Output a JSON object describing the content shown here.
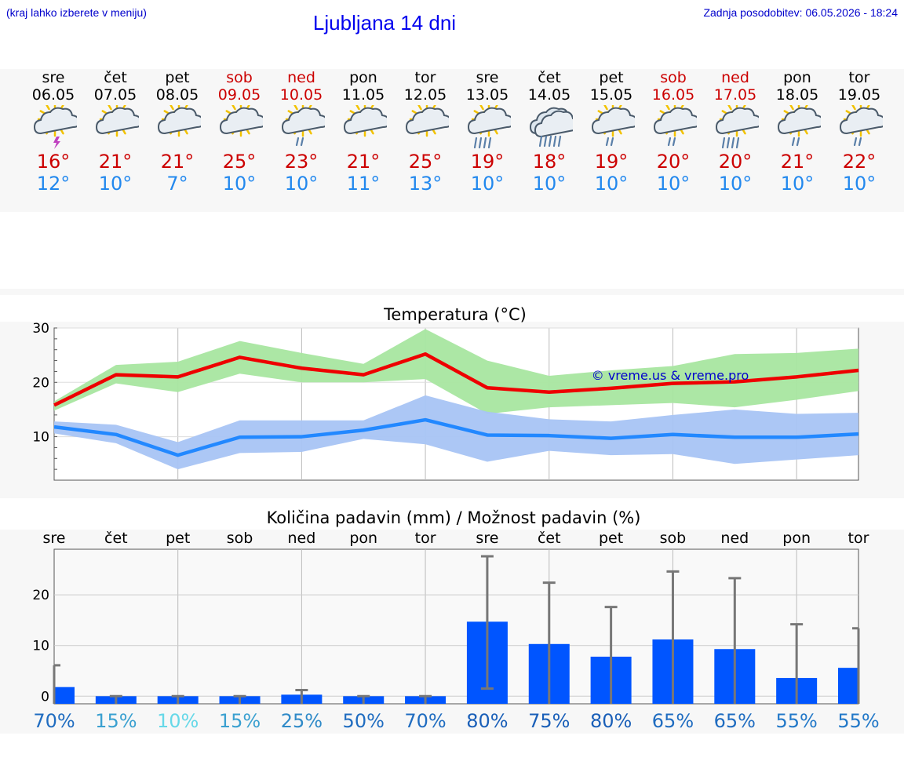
{
  "header": {
    "left_note": "(kraj lahko izberete v meniju)",
    "title": "Ljubljana 14 dni",
    "updated": "Zadnja posodobitev: 06.05.2026 - 18:24"
  },
  "days": [
    {
      "name": "sre",
      "date": "06.05",
      "weekend": false,
      "icon": "sun-cloud-thunder-icon",
      "hi": "16°",
      "lo": "12°"
    },
    {
      "name": "čet",
      "date": "07.05",
      "weekend": false,
      "icon": "sun-cloud-icon",
      "hi": "21°",
      "lo": "10°"
    },
    {
      "name": "pet",
      "date": "08.05",
      "weekend": false,
      "icon": "sun-cloud-icon",
      "hi": "21°",
      "lo": "7°"
    },
    {
      "name": "sob",
      "date": "09.05",
      "weekend": true,
      "icon": "sun-cloud-icon",
      "hi": "25°",
      "lo": "10°"
    },
    {
      "name": "ned",
      "date": "10.05",
      "weekend": true,
      "icon": "sun-cloud-light-rain-icon",
      "hi": "23°",
      "lo": "10°"
    },
    {
      "name": "pon",
      "date": "11.05",
      "weekend": false,
      "icon": "sun-cloud-icon",
      "hi": "21°",
      "lo": "11°"
    },
    {
      "name": "tor",
      "date": "12.05",
      "weekend": false,
      "icon": "sun-cloud-icon",
      "hi": "25°",
      "lo": "13°"
    },
    {
      "name": "sre",
      "date": "13.05",
      "weekend": false,
      "icon": "sun-cloud-rain-icon",
      "hi": "19°",
      "lo": "10°"
    },
    {
      "name": "čet",
      "date": "14.05",
      "weekend": false,
      "icon": "cloud-rain-icon",
      "hi": "18°",
      "lo": "10°"
    },
    {
      "name": "pet",
      "date": "15.05",
      "weekend": false,
      "icon": "sun-cloud-light-rain-icon",
      "hi": "19°",
      "lo": "10°"
    },
    {
      "name": "sob",
      "date": "16.05",
      "weekend": true,
      "icon": "sun-cloud-light-rain-icon",
      "hi": "20°",
      "lo": "10°"
    },
    {
      "name": "ned",
      "date": "17.05",
      "weekend": true,
      "icon": "sun-cloud-rain-icon",
      "hi": "20°",
      "lo": "10°"
    },
    {
      "name": "pon",
      "date": "18.05",
      "weekend": false,
      "icon": "sun-cloud-light-rain-icon",
      "hi": "21°",
      "lo": "10°"
    },
    {
      "name": "tor",
      "date": "19.05",
      "weekend": false,
      "icon": "sun-cloud-light-rain-icon",
      "hi": "22°",
      "lo": "10°"
    }
  ],
  "colors": {
    "max_line": "#ee0000",
    "max_band": "#a8e6a0",
    "min_line": "#2288ff",
    "min_band": "#a8c4f4",
    "bar": "#0055ff",
    "error": "#777777",
    "weekend": "#cc0000",
    "low_text": "#2288ee"
  },
  "chart_data": [
    {
      "type": "line",
      "title": "Temperatura (°C)",
      "watermark": "© vreme.us & vreme.pro",
      "ylim": [
        2,
        30
      ],
      "yticks": [
        10,
        20,
        30
      ],
      "grid": true,
      "series": [
        {
          "values": [
            15.8,
            21.4,
            21.0,
            24.6,
            22.6,
            21.4,
            25.2,
            19.0,
            18.2,
            18.9,
            19.8,
            20.1,
            21.0,
            22.2
          ],
          "band_low": [
            14.8,
            19.8,
            18.2,
            21.6,
            20.0,
            20.0,
            20.6,
            14.2,
            15.4,
            15.8,
            16.2,
            15.4,
            16.8,
            18.4
          ],
          "band_high": [
            16.5,
            23.2,
            23.8,
            27.6,
            25.4,
            23.4,
            29.8,
            24.0,
            21.2,
            22.2,
            23.0,
            25.2,
            25.4,
            26.2
          ]
        },
        {
          "values": [
            11.8,
            10.4,
            6.6,
            9.9,
            10.0,
            11.2,
            13.1,
            10.3,
            10.2,
            9.7,
            10.4,
            9.9,
            9.9,
            10.5
          ],
          "band_low": [
            10.6,
            8.8,
            4.0,
            7.0,
            7.2,
            9.6,
            8.6,
            5.4,
            7.4,
            6.6,
            6.8,
            5.0,
            5.8,
            6.6
          ],
          "band_high": [
            12.8,
            12.2,
            9.0,
            13.0,
            13.0,
            13.0,
            17.6,
            14.6,
            13.2,
            12.8,
            14.0,
            15.0,
            14.2,
            14.4
          ]
        }
      ]
    },
    {
      "type": "bar",
      "title": "Količina padavin (mm) / Možnost padavin (%)",
      "categories": [
        "sre",
        "čet",
        "pet",
        "sob",
        "ned",
        "pon",
        "tor",
        "sre",
        "čet",
        "pet",
        "sob",
        "ned",
        "pon",
        "tor"
      ],
      "ylim": [
        -1.5,
        29
      ],
      "yticks": [
        0,
        10,
        20
      ],
      "grid": true,
      "values": [
        1.8,
        0,
        0,
        0,
        0.3,
        0,
        0,
        14.7,
        10.3,
        7.8,
        11.2,
        9.3,
        3.6,
        5.6
      ],
      "err_low": [
        0,
        0,
        0,
        0,
        0,
        0,
        0,
        1.5,
        0,
        0,
        0,
        0,
        0,
        0
      ],
      "err_high": [
        6.1,
        0,
        0,
        0,
        1.2,
        0,
        0,
        27.6,
        22.4,
        17.6,
        24.6,
        23.3,
        14.2,
        13.4
      ],
      "chance": [
        "70%",
        "15%",
        "10%",
        "15%",
        "25%",
        "50%",
        "70%",
        "80%",
        "75%",
        "80%",
        "65%",
        "65%",
        "55%",
        "55%"
      ],
      "chance_colors": [
        "#1f6cc0",
        "#3aa0d0",
        "#66d8e8",
        "#3aa0d0",
        "#2f8ac8",
        "#1f6cc0",
        "#1f6cc0",
        "#1a5fb8",
        "#1a5fb8",
        "#1a5fb8",
        "#1f6cc0",
        "#1f6cc0",
        "#2278c8",
        "#2278c8"
      ]
    }
  ]
}
